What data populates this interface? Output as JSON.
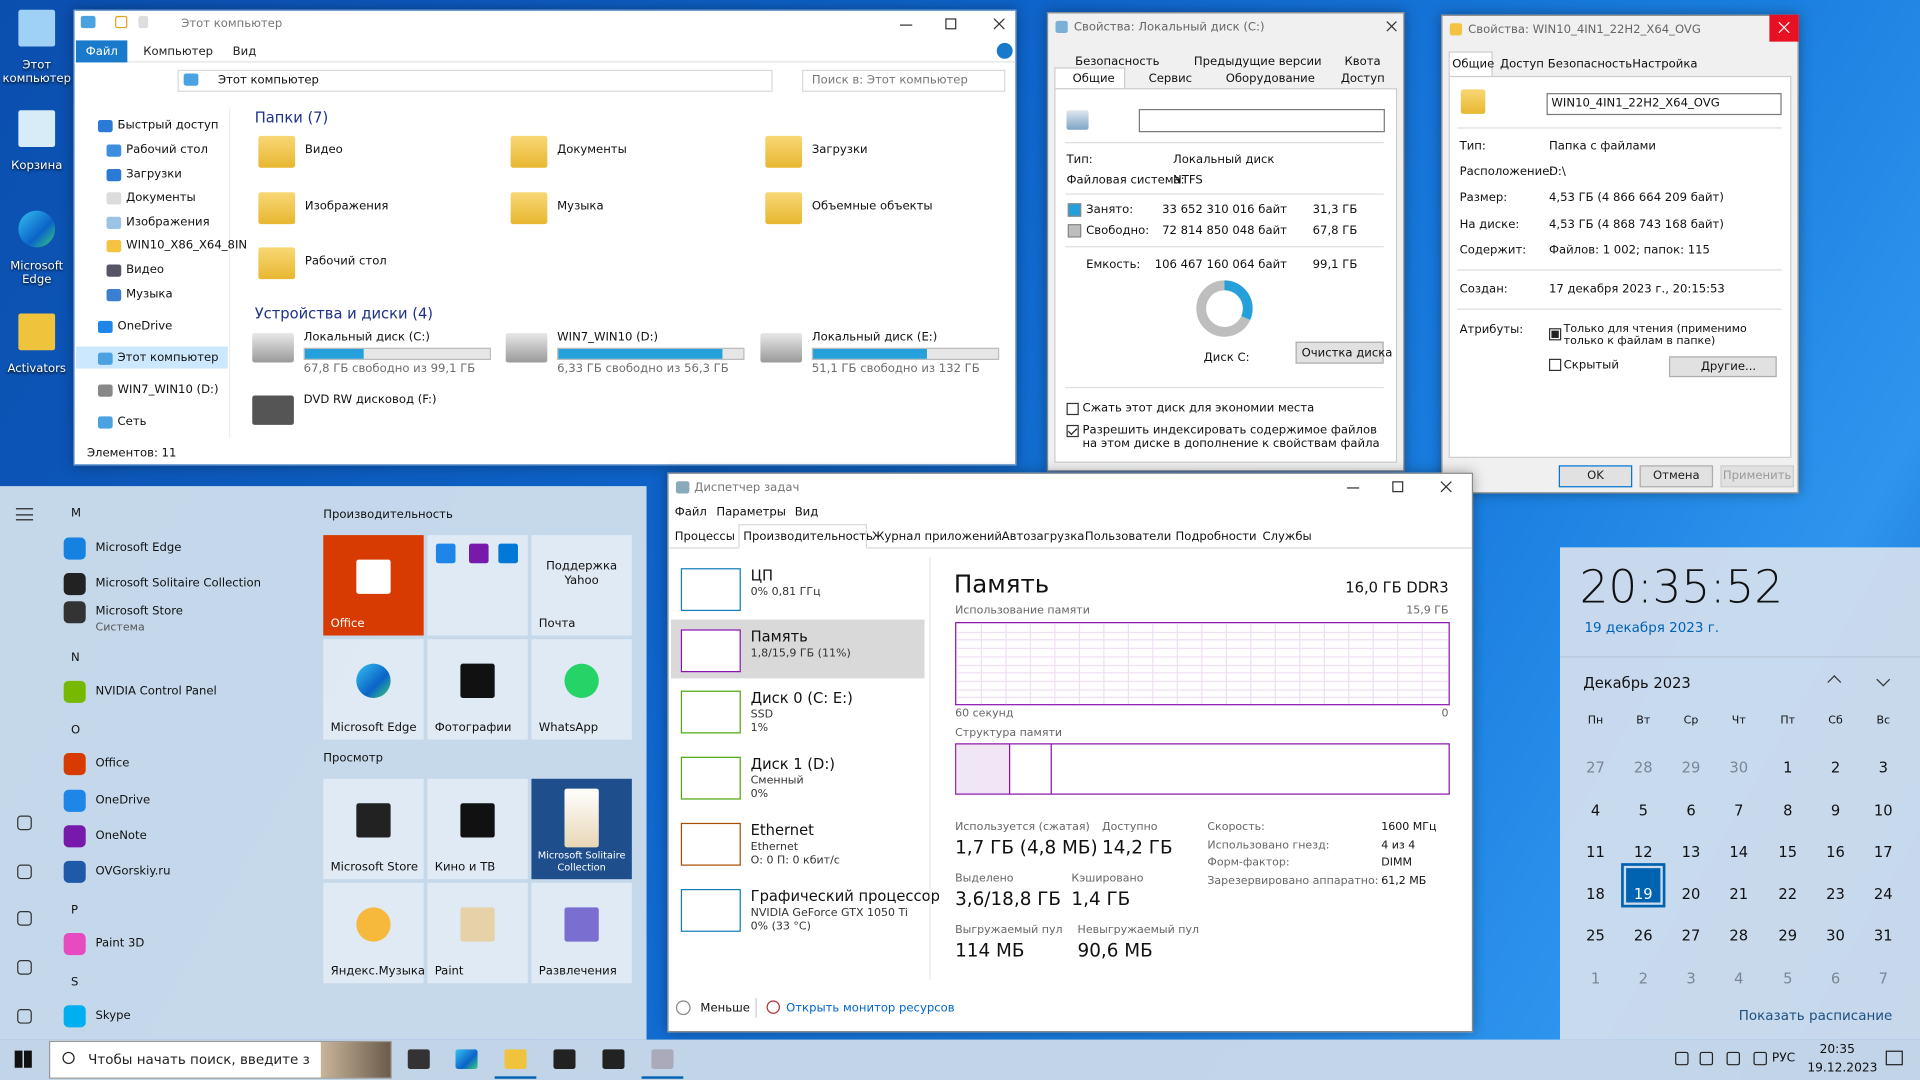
{
  "desktop": {
    "icons": [
      "Этот компьютер",
      "Корзина",
      "Microsoft Edge",
      "Activators"
    ]
  },
  "explorer": {
    "title": "Этот компьютер",
    "tabs": [
      "Файл",
      "Компьютер",
      "Вид"
    ],
    "address": "Этот компьютер",
    "search": "Поиск в: Этот компьютер",
    "nav": [
      "Быстрый доступ",
      "Рабочий стол",
      "Загрузки",
      "Документы",
      "Изображения",
      "WIN10_X86_X64_8IN",
      "Видео",
      "Музыка",
      "OneDrive",
      "Этот компьютер",
      "WIN7_WIN10 (D:)",
      "Сеть"
    ],
    "folders_header": "Папки (7)",
    "folders": [
      "Видео",
      "Документы",
      "Загрузки",
      "Изображения",
      "Музыка",
      "Объемные объекты",
      "Рабочий стол"
    ],
    "devices_header": "Устройства и диски (4)",
    "drives": [
      {
        "name": "Локальный диск (C:)",
        "info": "67,8 ГБ свободно из 99,1 ГБ",
        "used_percent": 31.6
      },
      {
        "name": "WIN7_WIN10 (D:)",
        "info": "6,33 ГБ свободно из 56,3 ГБ",
        "used_percent": 88.8
      },
      {
        "name": "Локальный диск (E:)",
        "info": "51,1 ГБ свободно из 132 ГБ",
        "used_percent": 61.3
      },
      {
        "name": "DVD RW дисковод (F:)"
      }
    ],
    "status": "Элементов: 11"
  },
  "props_c": {
    "title": "Свойства: Локальный диск (C:)",
    "tabs_top": [
      "Безопасность",
      "Предыдущие версии",
      "Квота"
    ],
    "tabs_bottom": [
      "Общие",
      "Сервис",
      "Оборудование",
      "Доступ"
    ],
    "rows": [
      [
        "Тип:",
        "Локальный диск"
      ],
      [
        "Файловая система:",
        "NTFS"
      ]
    ],
    "space": [
      [
        "Занято:",
        "33 652 310 016 байт",
        "31,3 ГБ"
      ],
      [
        "Свободно:",
        "72 814 850 048 байт",
        "67,8 ГБ"
      ],
      [
        "Емкость:",
        "106 467 160 064 байт",
        "99,1 ГБ"
      ]
    ],
    "donut": {
      "used": 31.3,
      "free": 67.8
    },
    "drive_label": "Диск C:",
    "cleanup": "Очистка диска",
    "options": [
      "Сжать этот диск для экономии места",
      "Разрешить индексировать содержимое файлов на этом диске в дополнение к свойствам файла"
    ]
  },
  "props_folder": {
    "title": "Свойства: WIN10_4IN1_22H2_X64_OVG",
    "tabs": [
      "Общие",
      "Доступ",
      "Безопасность",
      "Настройка"
    ],
    "name": "WIN10_4IN1_22H2_X64_OVG",
    "rows": [
      [
        "Тип:",
        "Папка с файлами"
      ],
      [
        "Расположение:",
        "D:\\"
      ],
      [
        "Размер:",
        "4,53 ГБ (4 866 664 209 байт)"
      ],
      [
        "На диске:",
        "4,53 ГБ (4 868 743 168 байт)"
      ],
      [
        "Содержит:",
        "Файлов: 1 002; папок: 115"
      ],
      [
        "Создан:",
        "17 декабря 2023 г., 20:15:53"
      ]
    ],
    "attributes_label": "Атрибуты:",
    "attributes": [
      "Только для чтения (применимо только к файлам в папке)",
      "Скрытый"
    ],
    "advanced": "Другие...",
    "buttons": [
      "OK",
      "Отмена",
      "Применить"
    ]
  },
  "taskmgr": {
    "title": "Диспетчер задач",
    "menu": [
      "Файл",
      "Параметры",
      "Вид"
    ],
    "tabs": [
      "Процессы",
      "Производительность",
      "Журнал приложений",
      "Автозагрузка",
      "Пользователи",
      "Подробности",
      "Службы"
    ],
    "resources": [
      {
        "name": "ЦП",
        "details": [
          "0% 0,81 ГГц"
        ]
      },
      {
        "name": "Память",
        "details": [
          "1,8/15,9 ГБ (11%)"
        ]
      },
      {
        "name": "Диск 0 (C: E:)",
        "details": [
          "SSD",
          "1%"
        ]
      },
      {
        "name": "Диск 1 (D:)",
        "details": [
          "Сменный",
          "0%"
        ]
      },
      {
        "name": "Ethernet",
        "details": [
          "Ethernet",
          "О: 0 П: 0 кбит/с"
        ]
      },
      {
        "name": "Графический процессор",
        "details": [
          "NVIDIA GeForce GTX 1050 Ti",
          "0% (33 °C)"
        ]
      }
    ],
    "heading": "Память",
    "spec": "16,0 ГБ DDR3",
    "usage_label": "Использование памяти",
    "usage_max": "15,9 ГБ",
    "time_span": "60 секунд",
    "usage_min": "0",
    "composition_label": "Структура памяти",
    "stats": [
      [
        "Используется (сжатая)",
        "1,7 ГБ (4,8 МБ)"
      ],
      [
        "Доступно",
        "14,2 ГБ"
      ],
      [
        "Выделено",
        "3,6/18,8 ГБ"
      ],
      [
        "Кэшировано",
        "1,4 ГБ"
      ],
      [
        "Выгружаемый пул",
        "114 МБ"
      ],
      [
        "Невыгружаемый пул",
        "90,6 МБ"
      ]
    ],
    "specs": [
      [
        "Скорость:",
        "1600 МГц"
      ],
      [
        "Использовано гнезд:",
        "4 из 4"
      ],
      [
        "Форм-фактор:",
        "DIMM"
      ],
      [
        "Зарезервировано аппаратно:",
        "61,2 МБ"
      ]
    ],
    "fewer": "Меньше",
    "monitor": "Открыть монитор ресурсов"
  },
  "start": {
    "groups": [
      {
        "letter": "M",
        "apps": [
          {
            "name": "Microsoft Edge"
          },
          {
            "name": "Microsoft Solitaire Collection"
          },
          {
            "name": "Microsoft Store",
            "sub": "Система"
          }
        ]
      },
      {
        "letter": "N",
        "apps": [
          {
            "name": "NVIDIA Control Panel"
          }
        ]
      },
      {
        "letter": "O",
        "apps": [
          {
            "name": "Office"
          },
          {
            "name": "OneDrive"
          },
          {
            "name": "OneNote"
          },
          {
            "name": "OVGorskiy.ru"
          }
        ]
      },
      {
        "letter": "P",
        "apps": [
          {
            "name": "Paint 3D"
          }
        ]
      },
      {
        "letter": "S",
        "apps": [
          {
            "name": "Skype"
          }
        ]
      }
    ],
    "headers": [
      "Производительность",
      "Просмотр"
    ],
    "tiles": [
      "Office",
      "Поддержка Yahoo",
      "Почта",
      "Microsoft Edge",
      "Фотографии",
      "WhatsApp",
      "Microsoft Store",
      "Кино и ТВ",
      "Microsoft Solitaire Collection",
      "Яндекс.Музыка",
      "Paint",
      "Развлечения"
    ]
  },
  "clock": {
    "time": "20:35:52",
    "date": "19 декабря 2023 г.",
    "month": "Декабрь 2023",
    "weekdays": [
      "Пн",
      "Вт",
      "Ср",
      "Чт",
      "Пт",
      "Сб",
      "Вс"
    ],
    "days": [
      27,
      28,
      29,
      30,
      1,
      2,
      3,
      4,
      5,
      6,
      7,
      8,
      9,
      10,
      11,
      12,
      13,
      14,
      15,
      16,
      17,
      18,
      19,
      20,
      21,
      22,
      23,
      24,
      25,
      26,
      27,
      28,
      29,
      30,
      31,
      1,
      2,
      3,
      4,
      5,
      6,
      7
    ],
    "agenda": "Показать расписание"
  },
  "taskbar": {
    "search": "Чтобы начать поиск, введите з",
    "language": "РУС",
    "time": "20:35",
    "date": "19.12.2023"
  }
}
